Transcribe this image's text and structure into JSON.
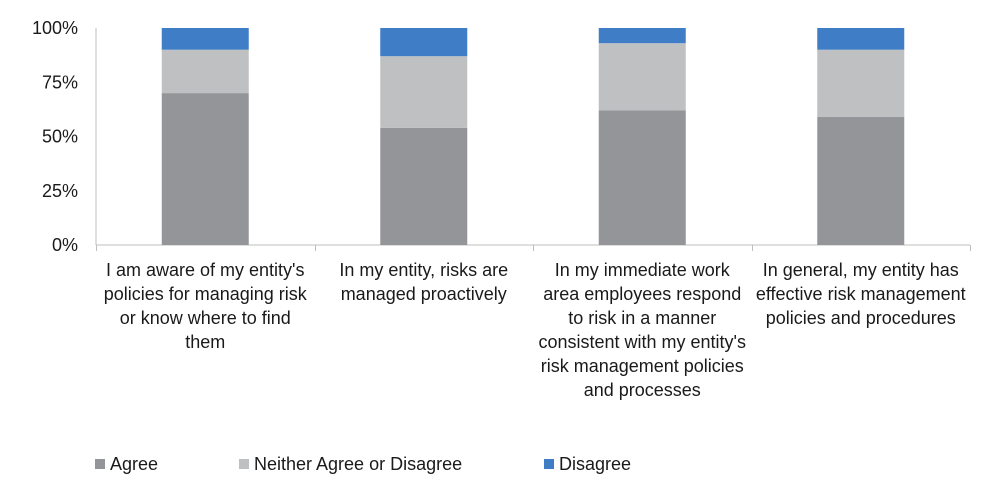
{
  "chart_data": {
    "type": "bar",
    "stacked": true,
    "categories": [
      "I am aware of my entity's policies for managing risk or know where to find them",
      "In my entity, risks are managed proactively",
      "In my immediate work area employees respond to risk in a manner consistent with my entity's risk management policies and processes",
      "In general, my entity has effective risk management policies and procedures"
    ],
    "series": [
      {
        "name": "Agree",
        "color": "#939598",
        "values": [
          70,
          54,
          62,
          59
        ]
      },
      {
        "name": "Neither Agree or Disagree",
        "color": "#bfc0c1",
        "values": [
          20,
          33,
          31,
          31
        ]
      },
      {
        "name": "Disagree",
        "color": "#3f7ec7",
        "values": [
          10,
          13,
          7,
          10
        ]
      }
    ],
    "ylim": [
      0,
      100
    ],
    "y_ticks": [
      "0%",
      "25%",
      "50%",
      "75%",
      "100%"
    ],
    "grid": false,
    "legend_position": "bottom"
  }
}
